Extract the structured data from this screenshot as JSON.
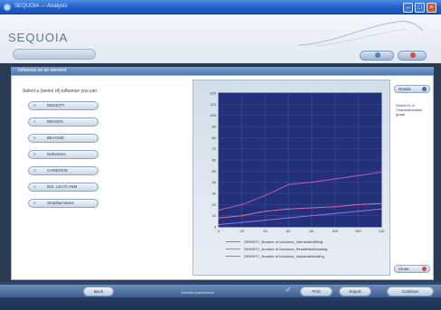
{
  "window": {
    "title": "SEQUOIA — Analysis"
  },
  "header": {
    "logo": "SEQUOIA"
  },
  "section": {
    "title": "Influence on an element"
  },
  "left_panel": {
    "instruction": "Select a (series of) influence you can",
    "params": [
      "DENSITY",
      "REGION",
      "BEYOND",
      "Reference",
      "CAREGIVE",
      "DIS. LEVIT.ANM",
      "Stratified items"
    ]
  },
  "right_panel": {
    "top_button": "Details",
    "hint": "Select ID of Characterization graph",
    "bottom_button": "Close"
  },
  "footer": {
    "back_label": "Back",
    "status": "Selected parameters",
    "print_label": "Print",
    "export_label": "Export",
    "next_label": "Continue"
  },
  "colors": {
    "plot_bg": "#22317a",
    "grid": "#4a5aa6",
    "series": [
      "#c15ab8",
      "#e06aa0",
      "#a86be8"
    ]
  },
  "chart_data": {
    "type": "line",
    "x": [
      0,
      20,
      40,
      60,
      80,
      100,
      120,
      140
    ],
    "xlim": [
      0,
      140
    ],
    "ylim": [
      0,
      120
    ],
    "x_ticks": [
      "0",
      "20",
      "40",
      "60",
      "80",
      "100",
      "120",
      "140"
    ],
    "y_ticks": [
      "0",
      "10",
      "20",
      "30",
      "40",
      "50",
      "60",
      "70",
      "80",
      "90",
      "100",
      "110",
      "120"
    ],
    "ylabel": "",
    "xlabel": "",
    "title": "",
    "grid": true,
    "legend_position": "bottom",
    "series": [
      {
        "name": "DENSITY_Number of functions_Interrelated/Bldg",
        "values": [
          15,
          20,
          28,
          38,
          40,
          43,
          46,
          49
        ]
      },
      {
        "name": "DENSITY_Number of functions_Residential/building",
        "values": [
          8,
          10,
          14,
          16,
          17,
          18,
          20,
          21
        ]
      },
      {
        "name": "DENSITY_Number of functions_Industrial/building",
        "values": [
          2,
          4,
          6,
          8,
          10,
          12,
          14,
          16
        ]
      }
    ]
  }
}
